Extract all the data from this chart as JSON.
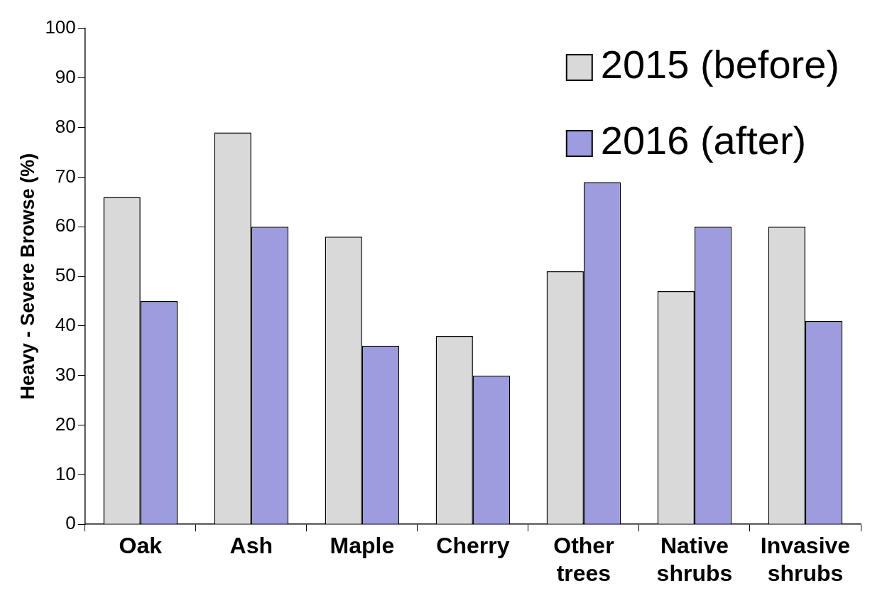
{
  "chart_data": {
    "type": "bar",
    "ylabel": "Heavy - Severe Browse (%)",
    "categories": [
      "Oak",
      "Ash",
      "Maple",
      "Cherry",
      "Other trees",
      "Native shrubs",
      "Invasive shrubs"
    ],
    "series": [
      {
        "name": "2015 (before)",
        "color": "#d9d9d9",
        "values": [
          66,
          79,
          58,
          38,
          51,
          47,
          60
        ]
      },
      {
        "name": "2016 (after)",
        "color": "#9c9cde",
        "values": [
          45,
          60,
          36,
          30,
          69,
          60,
          41
        ]
      }
    ],
    "ylim": [
      0,
      100
    ],
    "yticks": [
      0,
      10,
      20,
      30,
      40,
      50,
      60,
      70,
      80,
      90,
      100
    ],
    "grid": false,
    "legend": "top right"
  }
}
